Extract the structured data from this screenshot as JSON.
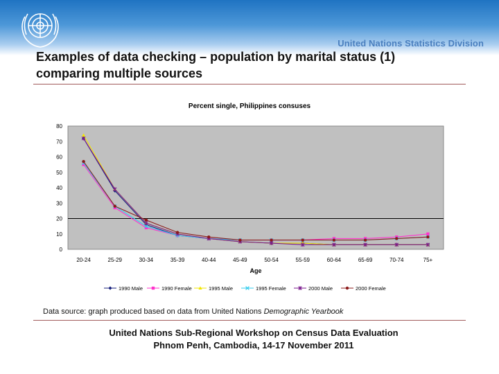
{
  "header": {
    "division": "United Nations Statistics Division",
    "title_line1": "Examples of data checking – population by marital status (1)",
    "title_line2": "comparing multiple sources"
  },
  "source": {
    "prefix": "Data source: graph produced based on data from United Nations ",
    "italic": "Demographic Yearbook"
  },
  "footer": {
    "line1": "United Nations Sub-Regional Workshop on Census Data Evaluation",
    "line2": "Phnom Penh, Cambodia, 14-17 November 2011"
  },
  "colors": {
    "plot_bg": "#c0c0c0",
    "1990 Male": "#1a237e",
    "1990 Female": "#ff33cc",
    "1995 Male": "#f2e600",
    "1995 Female": "#33ccee",
    "2000 Male": "#7a1a8c",
    "2000 Female": "#8b1a1a"
  },
  "chart_data": {
    "type": "line",
    "title": "Percent single, Philippines consuses",
    "xlabel": "Age",
    "ylabel": "",
    "ylim": [
      0,
      80
    ],
    "yticks": [
      0,
      10,
      20,
      30,
      40,
      50,
      60,
      70,
      80
    ],
    "categories": [
      "20-24",
      "25-29",
      "30-34",
      "35-39",
      "40-44",
      "45-49",
      "50-54",
      "55-59",
      "60-64",
      "65-69",
      "70-74",
      "75+"
    ],
    "series": [
      {
        "name": "1990 Male",
        "values": [
          72,
          38,
          16,
          9,
          7,
          5,
          4,
          4,
          3,
          3,
          3,
          3
        ]
      },
      {
        "name": "1990 Female",
        "values": [
          55,
          27,
          14,
          9,
          7,
          6,
          6,
          6,
          7,
          7,
          8,
          10
        ]
      },
      {
        "name": "1995 Male",
        "values": [
          74,
          39,
          17,
          10,
          7,
          5,
          4,
          4,
          3,
          3,
          3,
          3
        ]
      },
      {
        "name": "1995 Female",
        "values": [
          56,
          28,
          15,
          9,
          7,
          6,
          6,
          6,
          6,
          6,
          7,
          8
        ]
      },
      {
        "name": "2000 Male",
        "values": [
          72,
          39,
          17,
          10,
          7,
          5,
          4,
          3,
          3,
          3,
          3,
          3
        ]
      },
      {
        "name": "2000 Female",
        "values": [
          57,
          28,
          19,
          11,
          8,
          6,
          6,
          6,
          6,
          6,
          7,
          8
        ]
      }
    ],
    "legend_position": "bottom"
  }
}
